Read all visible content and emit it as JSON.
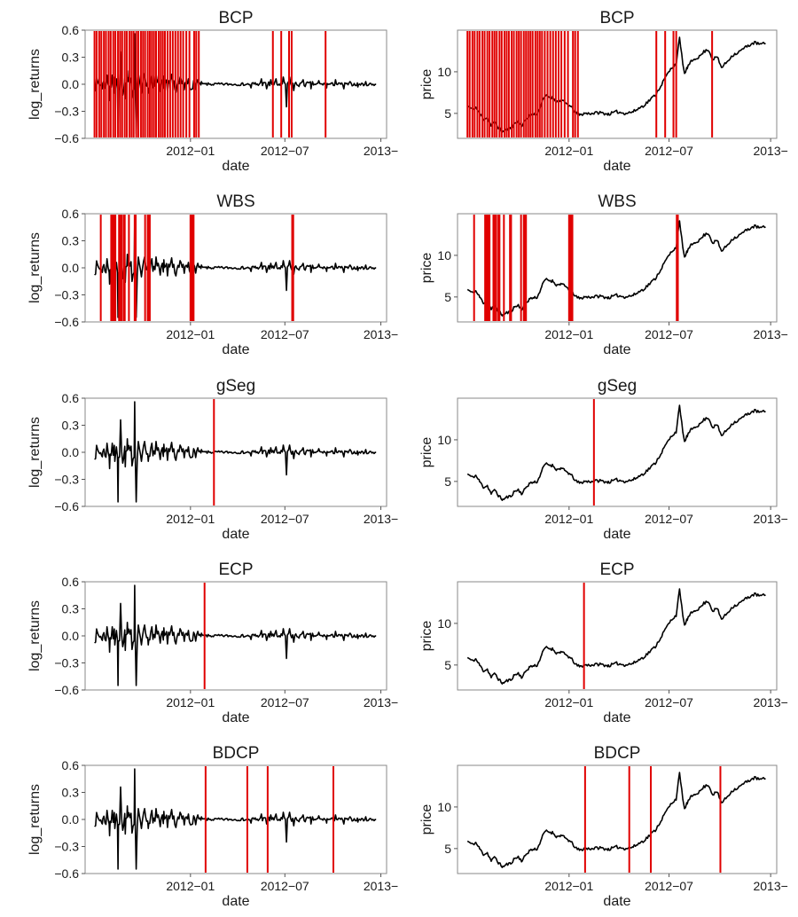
{
  "figure": {
    "x_tick_labels": [
      "2012−01",
      "2012−07",
      "2013−"
    ],
    "xlabel": "date",
    "ylabel_returns": "log_returns",
    "ylabel_price": "price",
    "returns_yticks": [
      "0.6",
      "0.3",
      "0.0",
      "−0.3",
      "−0.6"
    ],
    "price_yticks": [
      "10",
      "5"
    ],
    "changepoint_color": "#e00000",
    "series_color": "#000000"
  },
  "chart_data": {
    "type": "line",
    "x_unit": "days since 2011-07-01",
    "x_ticks": [
      184,
      365,
      549
    ],
    "x_tick_labels": [
      "2012−01",
      "2012−07",
      "2013−"
    ],
    "x_range": [
      -18,
      560
    ],
    "returns": {
      "ylabel": "log_returns",
      "ylim": [
        -0.6,
        0.6
      ],
      "y_ticks": [
        0.6,
        0.3,
        0.0,
        -0.3,
        -0.6
      ],
      "spikes": [
        [
          15,
          -0.05
        ],
        [
          24,
          0.1
        ],
        [
          29,
          -0.18
        ],
        [
          34,
          0.1
        ],
        [
          39,
          -0.1
        ],
        [
          45,
          -0.55
        ],
        [
          50,
          0.36
        ],
        [
          54,
          -0.12
        ],
        [
          59,
          -0.16
        ],
        [
          63,
          0.15
        ],
        [
          72,
          -0.15
        ],
        [
          77,
          0.56
        ],
        [
          80,
          -0.55
        ],
        [
          84,
          0.12
        ],
        [
          90,
          -0.1
        ],
        [
          96,
          0.12
        ],
        [
          103,
          -0.1
        ],
        [
          110,
          0.1
        ],
        [
          118,
          0.12
        ],
        [
          126,
          -0.08
        ],
        [
          133,
          0.09
        ],
        [
          140,
          -0.09
        ],
        [
          148,
          0.11
        ],
        [
          156,
          -0.09
        ],
        [
          164,
          0.08
        ],
        [
          172,
          -0.06
        ],
        [
          180,
          0.06
        ],
        [
          188,
          -0.05
        ],
        [
          198,
          0.05
        ],
        [
          205,
          0.03
        ],
        [
          300,
          -0.04
        ],
        [
          320,
          0.06
        ],
        [
          330,
          -0.05
        ],
        [
          338,
          0.05
        ],
        [
          348,
          0.06
        ],
        [
          362,
          0.08
        ],
        [
          368,
          -0.25
        ],
        [
          374,
          0.08
        ],
        [
          382,
          -0.07
        ],
        [
          400,
          0.05
        ],
        [
          415,
          -0.05
        ],
        [
          430,
          0.04
        ],
        [
          445,
          -0.04
        ],
        [
          462,
          0.05
        ],
        [
          478,
          -0.05
        ],
        [
          490,
          0.03
        ],
        [
          505,
          -0.03
        ],
        [
          520,
          0.03
        ]
      ]
    },
    "price": {
      "ylabel": "price",
      "ylim": [
        2,
        15
      ],
      "y_ticks": [
        10,
        5
      ],
      "points": [
        [
          0,
          5.9
        ],
        [
          8,
          5.5
        ],
        [
          15,
          5.7
        ],
        [
          22,
          5.0
        ],
        [
          29,
          4.3
        ],
        [
          36,
          4.5
        ],
        [
          43,
          3.5
        ],
        [
          50,
          4.0
        ],
        [
          57,
          3.2
        ],
        [
          64,
          2.8
        ],
        [
          71,
          3.1
        ],
        [
          78,
          3.2
        ],
        [
          85,
          3.8
        ],
        [
          92,
          4.0
        ],
        [
          99,
          3.5
        ],
        [
          106,
          4.3
        ],
        [
          113,
          4.8
        ],
        [
          120,
          4.9
        ],
        [
          127,
          5.0
        ],
        [
          134,
          6.2
        ],
        [
          141,
          7.1
        ],
        [
          148,
          7.0
        ],
        [
          155,
          6.9
        ],
        [
          162,
          6.4
        ],
        [
          169,
          6.6
        ],
        [
          176,
          6.3
        ],
        [
          183,
          6.0
        ],
        [
          190,
          5.6
        ],
        [
          197,
          5.0
        ],
        [
          204,
          4.8
        ],
        [
          211,
          5.0
        ],
        [
          225,
          5.0
        ],
        [
          240,
          5.1
        ],
        [
          255,
          4.9
        ],
        [
          270,
          5.2
        ],
        [
          285,
          5.0
        ],
        [
          300,
          5.2
        ],
        [
          310,
          5.6
        ],
        [
          320,
          6.0
        ],
        [
          330,
          6.6
        ],
        [
          340,
          7.2
        ],
        [
          350,
          8.3
        ],
        [
          360,
          9.5
        ],
        [
          370,
          10.5
        ],
        [
          378,
          11.0
        ],
        [
          384,
          14.0
        ],
        [
          388,
          12.0
        ],
        [
          393,
          9.7
        ],
        [
          398,
          10.5
        ],
        [
          405,
          11.2
        ],
        [
          412,
          11.6
        ],
        [
          420,
          11.8
        ],
        [
          428,
          12.4
        ],
        [
          436,
          12.7
        ],
        [
          444,
          11.5
        ],
        [
          452,
          11.8
        ],
        [
          460,
          10.5
        ],
        [
          470,
          11.2
        ],
        [
          480,
          12.0
        ],
        [
          490,
          12.3
        ],
        [
          500,
          12.8
        ],
        [
          510,
          13.2
        ],
        [
          520,
          13.5
        ],
        [
          530,
          13.3
        ],
        [
          540,
          13.4
        ]
      ]
    },
    "panels": [
      {
        "title": "BCP",
        "changepoints": [
          0,
          4,
          9,
          13,
          18,
          22,
          27,
          31,
          36,
          40,
          45,
          49,
          53,
          58,
          62,
          67,
          71,
          75,
          80,
          84,
          89,
          93,
          97,
          102,
          106,
          110,
          114,
          118,
          123,
          127,
          131,
          135,
          140,
          145,
          150,
          155,
          160,
          165,
          170,
          176,
          182,
          191,
          195,
          200,
          342,
          358,
          373,
          378,
          443
        ]
      },
      {
        "title": "WBS",
        "changepoints": [
          12,
          32,
          34,
          36,
          38,
          40,
          47,
          49,
          52,
          56,
          58,
          66,
          77,
          79,
          97,
          102,
          104,
          106,
          184,
          186,
          188,
          190,
          379,
          381
        ]
      },
      {
        "title": "gSeg",
        "changepoints": [
          229
        ]
      },
      {
        "title": "ECP",
        "changepoints": [
          211
        ]
      },
      {
        "title": "BDCP",
        "changepoints": [
          213,
          293,
          332,
          458
        ]
      }
    ]
  }
}
